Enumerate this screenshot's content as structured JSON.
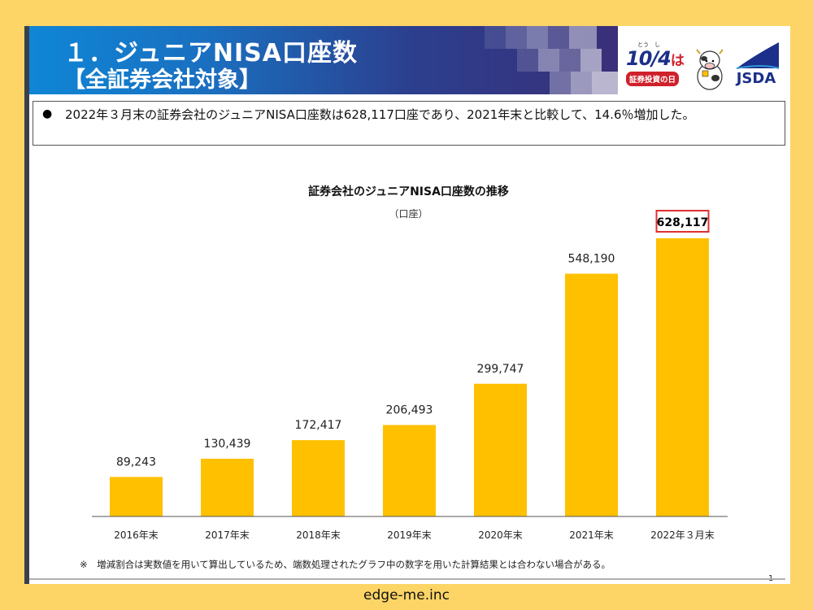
{
  "header": {
    "title_line1": "１．ジュニアNISA口座数",
    "title_line2": "【全証券会社対象】"
  },
  "logos": {
    "event_ruby": "とう　し",
    "event_date": "10/4",
    "event_ha": "は",
    "event_label": "証券投資の日",
    "jsda": "JSDA"
  },
  "note": {
    "bullet": "●",
    "text": "2022年３月末の証券会社のジュニアNISA口座数は628,117口座であり、2021年末と比較して、14.6％増加した。"
  },
  "chart_data": {
    "type": "bar",
    "title": "証券会社のジュニアNISA口座数の推移",
    "unit": "（口座）",
    "categories": [
      "2016年末",
      "2017年末",
      "2018年末",
      "2019年末",
      "2020年末",
      "2021年末",
      "2022年３月末"
    ],
    "values": [
      89243,
      130439,
      172417,
      206493,
      299747,
      548190,
      628117
    ],
    "value_labels": [
      "89,243",
      "130,439",
      "172,417",
      "206,493",
      "299,747",
      "548,190",
      "628,117"
    ],
    "highlight_index": 6,
    "ylim": [
      0,
      628117
    ],
    "bar_color": "#FFC000",
    "highlight_border_color": "#E03030"
  },
  "footnote": "※　増減割合は実数値を用いて算出しているため、端数処理されたグラフ中の数字を用いた計算結果とは合わない場合がある。",
  "page_number": "1",
  "footer": "edge-me.inc"
}
